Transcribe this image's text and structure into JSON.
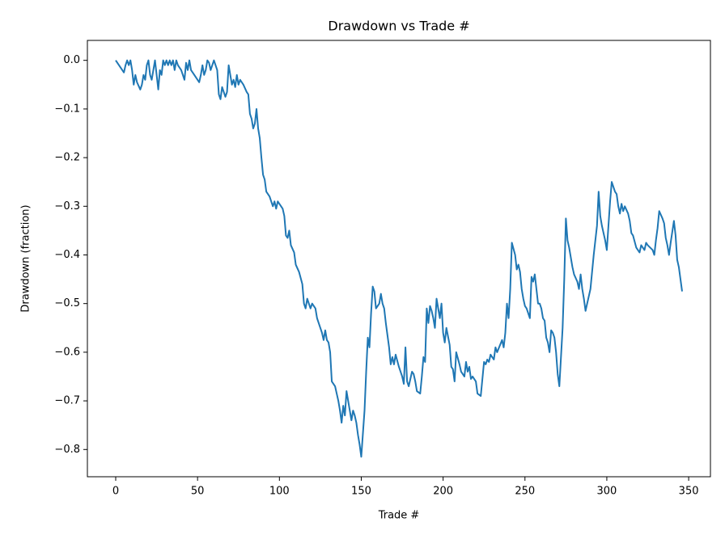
{
  "chart_data": {
    "type": "line",
    "title": "Drawdown vs Trade #",
    "x_label": "Trade #",
    "y_label": "Drawdown (fraction)",
    "xlim": [
      -17.3,
      363.3
    ],
    "ylim": [
      -0.856,
      0.041
    ],
    "xticks": [
      0,
      50,
      100,
      150,
      200,
      250,
      300,
      350
    ],
    "yticks": [
      {
        "value": 0,
        "label": "0.0"
      },
      {
        "value": -0.1,
        "label": "−0.1"
      },
      {
        "value": -0.2,
        "label": "−0.2"
      },
      {
        "value": -0.3,
        "label": "−0.3"
      },
      {
        "value": -0.4,
        "label": "−0.4"
      },
      {
        "value": -0.5,
        "label": "−0.5"
      },
      {
        "value": -0.6,
        "label": "−0.6"
      },
      {
        "value": -0.7,
        "label": "−0.7"
      },
      {
        "value": -0.8,
        "label": "−0.8"
      }
    ],
    "series": [
      {
        "color": "#1f77b4",
        "x": [
          0,
          2,
          4,
          5,
          6,
          7,
          8,
          9,
          10,
          11,
          12,
          13,
          15,
          16,
          17,
          18,
          19,
          20,
          21,
          22,
          23,
          24,
          25,
          26,
          27,
          28,
          29,
          30,
          31,
          32,
          33,
          34,
          35,
          36,
          37,
          38,
          40,
          41,
          42,
          43,
          44,
          45,
          46,
          48,
          51,
          52,
          53,
          54,
          55,
          56,
          57,
          58,
          59,
          60,
          61,
          62,
          63,
          64,
          65,
          66,
          67,
          68,
          69,
          70,
          71,
          72,
          73,
          74,
          75,
          76,
          78,
          80,
          81,
          82,
          83,
          84,
          85,
          86,
          87,
          88,
          89,
          90,
          91,
          92,
          94,
          96,
          97,
          98,
          99,
          102,
          103,
          104,
          105,
          106,
          107,
          109,
          110,
          112,
          114,
          115,
          116,
          117,
          118,
          119,
          120,
          122,
          123,
          124,
          126,
          127,
          128,
          129,
          130,
          131,
          132,
          133,
          134,
          135,
          136,
          137,
          138,
          139,
          140,
          141,
          142,
          143,
          144,
          145,
          146,
          147,
          148,
          149,
          150,
          152,
          153,
          154,
          155,
          156,
          157,
          158,
          159,
          161,
          162,
          163,
          164,
          165,
          166,
          167,
          168,
          169,
          170,
          171,
          173,
          175,
          176,
          177,
          178,
          179,
          181,
          182,
          183,
          184,
          186,
          187,
          188,
          189,
          190,
          191,
          192,
          193,
          194,
          195,
          196,
          198,
          199,
          200,
          201,
          202,
          204,
          205,
          206,
          207,
          208,
          210,
          211,
          213,
          214,
          215,
          216,
          217,
          218,
          220,
          221,
          223,
          225,
          226,
          227,
          228,
          229,
          231,
          232,
          233,
          236,
          237,
          238,
          239,
          240,
          241,
          242,
          244,
          245,
          246,
          247,
          248,
          249,
          250,
          251,
          252,
          253,
          254,
          255,
          256,
          258,
          259,
          260,
          261,
          262,
          263,
          264,
          265,
          266,
          267,
          268,
          269,
          270,
          271,
          273,
          274,
          275,
          276,
          277,
          279,
          280,
          282,
          283,
          284,
          285,
          286,
          287,
          288,
          290,
          292,
          294,
          295,
          296,
          297,
          299,
          300,
          301,
          302,
          303,
          305,
          306,
          307,
          308,
          309,
          310,
          311,
          313,
          314,
          315,
          316,
          318,
          320,
          321,
          322,
          323,
          324,
          325,
          328,
          329,
          330,
          331,
          332,
          334,
          335,
          336,
          337,
          338,
          339,
          341,
          342,
          343,
          344,
          345,
          346
        ],
        "values": [
          0,
          -0.01,
          -0.02,
          -0.025,
          -0.01,
          0,
          -0.01,
          0,
          -0.02,
          -0.05,
          -0.03,
          -0.045,
          -0.06,
          -0.05,
          -0.03,
          -0.04,
          -0.01,
          0,
          -0.03,
          -0.04,
          -0.02,
          0,
          -0.03,
          -0.06,
          -0.02,
          -0.03,
          0,
          -0.01,
          0,
          -0.01,
          0,
          -0.01,
          0,
          -0.02,
          0,
          -0.01,
          -0.02,
          -0.03,
          -0.04,
          -0.005,
          -0.02,
          0,
          -0.02,
          -0.03,
          -0.045,
          -0.03,
          -0.01,
          -0.03,
          -0.02,
          0,
          -0.005,
          -0.02,
          -0.01,
          0,
          -0.01,
          -0.02,
          -0.07,
          -0.08,
          -0.055,
          -0.065,
          -0.075,
          -0.065,
          -0.01,
          -0.03,
          -0.05,
          -0.04,
          -0.055,
          -0.03,
          -0.05,
          -0.04,
          -0.05,
          -0.065,
          -0.07,
          -0.11,
          -0.12,
          -0.14,
          -0.13,
          -0.1,
          -0.14,
          -0.16,
          -0.2,
          -0.235,
          -0.245,
          -0.27,
          -0.28,
          -0.3,
          -0.29,
          -0.305,
          -0.29,
          -0.305,
          -0.32,
          -0.36,
          -0.365,
          -0.35,
          -0.38,
          -0.395,
          -0.42,
          -0.435,
          -0.46,
          -0.5,
          -0.51,
          -0.49,
          -0.5,
          -0.51,
          -0.5,
          -0.51,
          -0.53,
          -0.54,
          -0.56,
          -0.575,
          -0.555,
          -0.575,
          -0.58,
          -0.6,
          -0.66,
          -0.665,
          -0.67,
          -0.685,
          -0.7,
          -0.72,
          -0.745,
          -0.71,
          -0.73,
          -0.68,
          -0.7,
          -0.72,
          -0.74,
          -0.72,
          -0.73,
          -0.745,
          -0.77,
          -0.79,
          -0.815,
          -0.72,
          -0.64,
          -0.57,
          -0.59,
          -0.52,
          -0.465,
          -0.475,
          -0.51,
          -0.5,
          -0.48,
          -0.5,
          -0.51,
          -0.54,
          -0.565,
          -0.59,
          -0.625,
          -0.61,
          -0.625,
          -0.605,
          -0.63,
          -0.65,
          -0.665,
          -0.59,
          -0.66,
          -0.67,
          -0.64,
          -0.645,
          -0.66,
          -0.68,
          -0.685,
          -0.65,
          -0.61,
          -0.62,
          -0.51,
          -0.54,
          -0.505,
          -0.515,
          -0.53,
          -0.55,
          -0.49,
          -0.53,
          -0.5,
          -0.56,
          -0.58,
          -0.55,
          -0.585,
          -0.63,
          -0.635,
          -0.66,
          -0.6,
          -0.625,
          -0.64,
          -0.65,
          -0.62,
          -0.64,
          -0.63,
          -0.655,
          -0.65,
          -0.66,
          -0.685,
          -0.69,
          -0.62,
          -0.625,
          -0.615,
          -0.62,
          -0.605,
          -0.615,
          -0.59,
          -0.6,
          -0.575,
          -0.59,
          -0.56,
          -0.5,
          -0.53,
          -0.47,
          -0.375,
          -0.4,
          -0.43,
          -0.42,
          -0.435,
          -0.47,
          -0.49,
          -0.505,
          -0.51,
          -0.52,
          -0.53,
          -0.445,
          -0.455,
          -0.44,
          -0.5,
          -0.5,
          -0.51,
          -0.53,
          -0.535,
          -0.57,
          -0.58,
          -0.6,
          -0.555,
          -0.56,
          -0.57,
          -0.6,
          -0.645,
          -0.67,
          -0.55,
          -0.45,
          -0.325,
          -0.37,
          -0.385,
          -0.425,
          -0.44,
          -0.455,
          -0.47,
          -0.44,
          -0.47,
          -0.49,
          -0.515,
          -0.5,
          -0.47,
          -0.4,
          -0.34,
          -0.27,
          -0.32,
          -0.34,
          -0.37,
          -0.39,
          -0.34,
          -0.29,
          -0.25,
          -0.27,
          -0.275,
          -0.3,
          -0.315,
          -0.295,
          -0.31,
          -0.3,
          -0.315,
          -0.33,
          -0.355,
          -0.36,
          -0.385,
          -0.395,
          -0.38,
          -0.385,
          -0.39,
          -0.375,
          -0.38,
          -0.39,
          -0.4,
          -0.37,
          -0.345,
          -0.31,
          -0.325,
          -0.335,
          -0.365,
          -0.38,
          -0.4,
          -0.375,
          -0.33,
          -0.36,
          -0.41,
          -0.425,
          -0.45,
          -0.475
        ]
      }
    ]
  }
}
